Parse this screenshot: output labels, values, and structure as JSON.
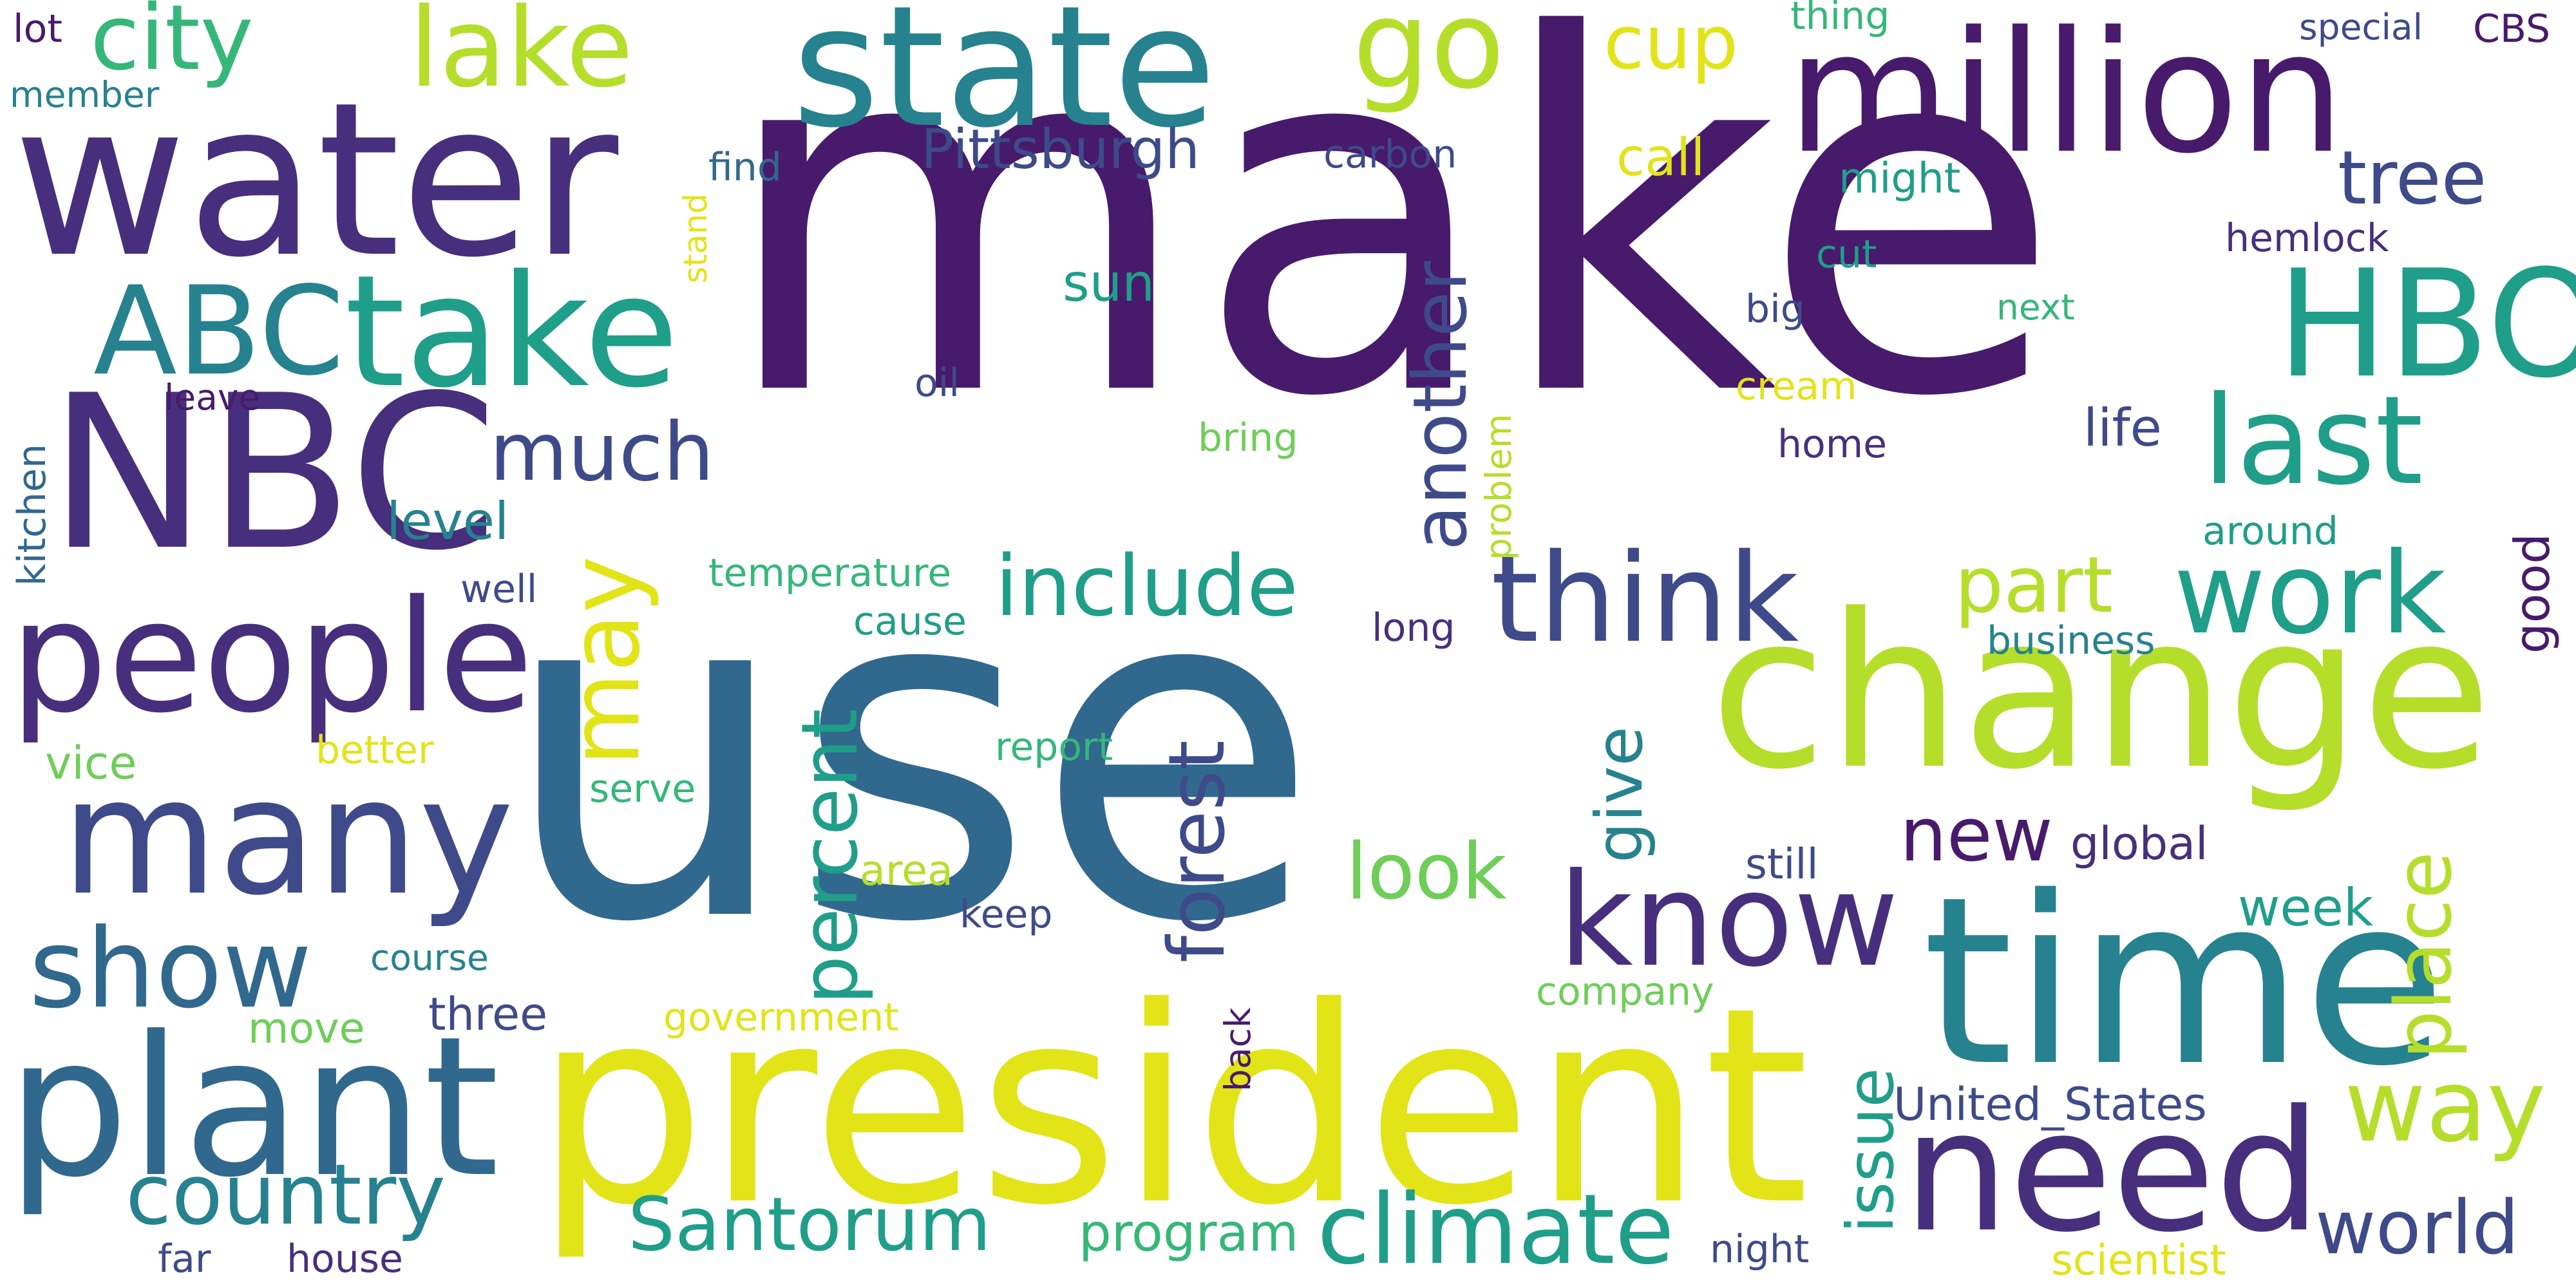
{
  "palette": {
    "deep_purple": "#481a6c",
    "indigo": "#472f7d",
    "slate_blue": "#3e4a89",
    "steel_blue": "#31688e",
    "teal": "#26828e",
    "sea_green": "#1f9e89",
    "green": "#35b779",
    "light_green": "#6ece58",
    "lime": "#b5de2b",
    "yellow": "#e2e418"
  },
  "words": {
    "make": "make",
    "use": "use",
    "president": "president",
    "change": "change",
    "time": "time",
    "water": "water",
    "state": "state",
    "million": "million",
    "NBC": "NBC",
    "plant": "plant",
    "people": "people",
    "many": "many",
    "take": "take",
    "HBO": "HBO",
    "need": "need",
    "ABC": "ABC",
    "know": "know",
    "think": "think",
    "last": "last",
    "lake": "lake",
    "go": "go",
    "show": "show",
    "work": "work",
    "climate": "climate",
    "city": "city",
    "country": "country",
    "Santorum": "Santorum",
    "include": "include",
    "may": "may",
    "another": "another",
    "much": "much",
    "way": "way",
    "part": "part",
    "world": "world",
    "percent": "percent",
    "forest": "forest",
    "place": "place",
    "cup": "cup",
    "tree": "tree",
    "look": "look",
    "issue": "issue",
    "new": "new",
    "give": "give",
    "Pittsburgh": "Pittsburgh",
    "program": "program",
    "United_States": "United_States",
    "level": "level",
    "sun": "sun",
    "life": "life",
    "call": "call",
    "week": "week",
    "good": "good",
    "kitchen": "kitchen",
    "temperature": "temperature",
    "three": "three",
    "global": "global",
    "still": "still",
    "carbon": "carbon",
    "million_small": "",
    "hemlock": "hemlock",
    "cut": "cut",
    "big": "big",
    "cream": "cream",
    "home": "home",
    "next": "next",
    "might": "might",
    "around": "around",
    "report": "report",
    "serve": "serve",
    "vice": "vice",
    "better": "better",
    "course": "course",
    "move": "move",
    "government": "government",
    "house": "house",
    "far": "far",
    "night": "night",
    "scientist": "scientist",
    "company": "company",
    "back": "back",
    "keep": "keep",
    "area": "area",
    "cause": "cause",
    "long": "long",
    "business": "business",
    "well": "well",
    "leave": "leave",
    "oil": "oil",
    "bring": "bring",
    "problem": "problem",
    "find": "find",
    "stand": "stand",
    "thing": "thing",
    "special": "special",
    "CBS": "CBS",
    "lot": "lot",
    "member": "member"
  }
}
